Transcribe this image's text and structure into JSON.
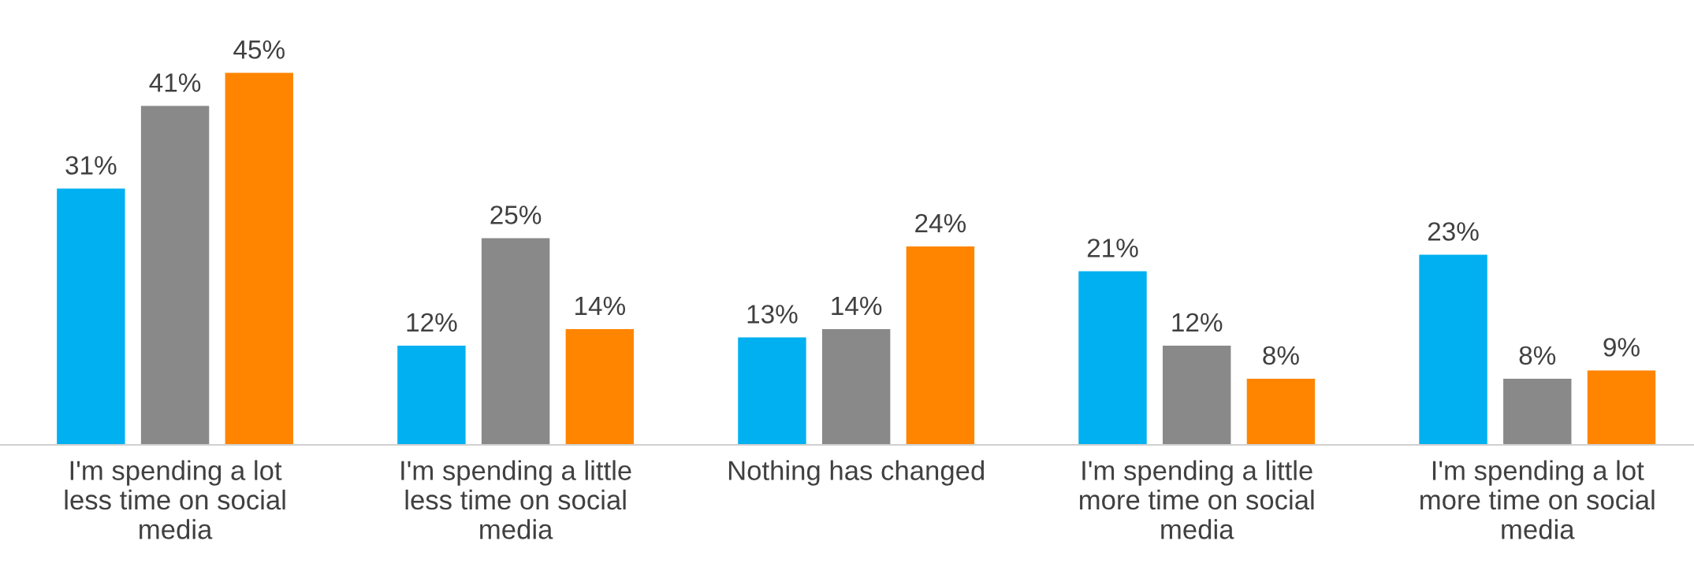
{
  "chart_data": {
    "type": "bar",
    "categories": [
      "I'm spending a lot less time on social media",
      "I'm spending a little less time on social media",
      "Nothing has changed",
      "I'm spending a little more time on social media",
      "I'm spending a lot more time on social media"
    ],
    "series": [
      {
        "color": "#00b0f0",
        "values": [
          31,
          12,
          13,
          21,
          23
        ],
        "value_labels": [
          "31%",
          "12%",
          "13%",
          "21%",
          "23%"
        ]
      },
      {
        "color": "#898989",
        "values": [
          41,
          25,
          14,
          12,
          8
        ],
        "value_labels": [
          "41%",
          "25%",
          "14%",
          "12%",
          "8%"
        ]
      },
      {
        "color": "#ff8500",
        "values": [
          45,
          14,
          24,
          8,
          9
        ],
        "value_labels": [
          "45%",
          "14%",
          "24%",
          "8%",
          "9%"
        ]
      }
    ],
    "grid": false,
    "legend": false
  }
}
